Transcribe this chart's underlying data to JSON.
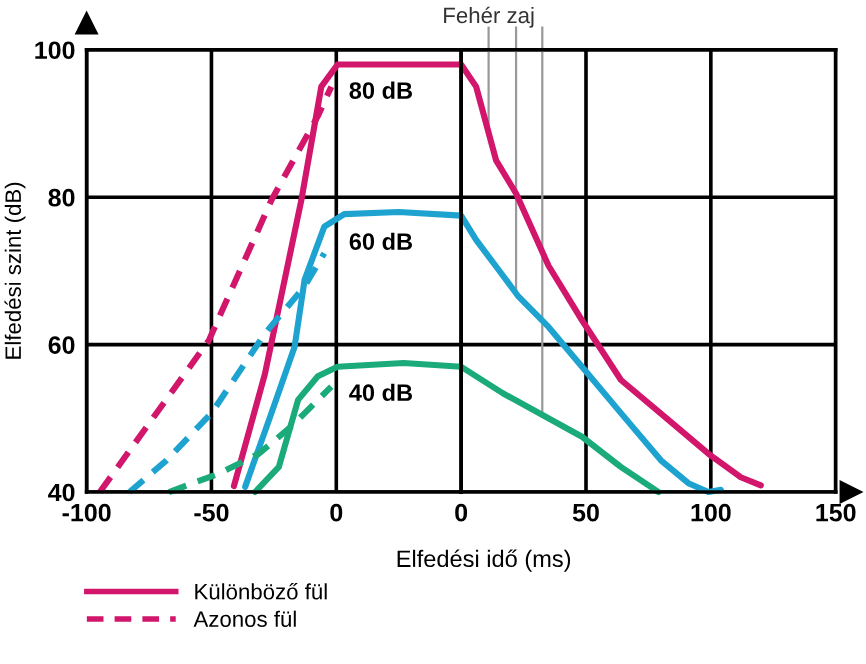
{
  "chart_data": [
    {
      "type": "line",
      "ylabel": "Elfedési szint (dB)",
      "xlim": [
        -100,
        50
      ],
      "ylim": [
        40,
        100
      ],
      "xticks": [
        -100,
        -50,
        0
      ],
      "yticks": [
        40,
        60,
        80,
        100
      ],
      "grid": true,
      "legend": "bottom left",
      "line_style": "solid",
      "series": [
        {
          "name": "Különböző fül",
          "color": "#d1166b",
          "x": [
            -41,
            -28.6,
            -14,
            -6,
            0.5,
            48,
            50
          ],
          "values": [
            40.8,
            56,
            79.6,
            95,
            98,
            98,
            98
          ]
        },
        {
          "color": "#1ea3d0",
          "x": [
            -36.5,
            -26,
            -16.7,
            -12.7,
            -4.8,
            3.2,
            25,
            50
          ],
          "values": [
            40.7,
            50.7,
            59.7,
            68.8,
            76,
            77.7,
            78,
            77.5
          ]
        },
        {
          "color": "#1bab7a",
          "x": [
            -32.5,
            -23,
            -15.3,
            -7.4,
            0.5,
            27,
            50
          ],
          "values": [
            40,
            43.4,
            52.5,
            55.7,
            57,
            57.5,
            57
          ]
        },
        {
          "name": "Azonos fül",
          "color": "#d1166b",
          "line_style": "dashed",
          "x": [
            -94.7,
            -51,
            -26,
            -7.4,
            -2
          ],
          "values": [
            40,
            60.6,
            79.6,
            91,
            95
          ]
        },
        {
          "color": "#1ea3d0",
          "line_style": "dashed",
          "x": [
            -82.8,
            -68,
            -50,
            -28.6,
            -12.7,
            -4.8
          ],
          "values": [
            40,
            44.3,
            50.7,
            61.5,
            67.9,
            72.4
          ]
        },
        {
          "color": "#1bab7a",
          "line_style": "dashed",
          "x": [
            -67,
            -47,
            -31,
            -18,
            -7.4,
            -2
          ],
          "values": [
            40,
            42.5,
            45.2,
            48.9,
            52.5,
            54.3
          ]
        }
      ],
      "annotations": [
        "80 dB",
        "60 dB",
        "40 dB"
      ]
    },
    {
      "type": "line",
      "xlabel": "Elfedési idő (ms)",
      "xlim": [
        0,
        150
      ],
      "ylim": [
        40,
        100
      ],
      "xticks": [
        0,
        50,
        100,
        150
      ],
      "yticks": [
        40,
        60,
        80,
        100
      ],
      "grid": true,
      "tick_labels": "x",
      "line_style": "solid",
      "series": [
        {
          "color": "#d1166b",
          "x": [
            0,
            6,
            14,
            22,
            35,
            48.4,
            64,
            83,
            99,
            112,
            120
          ],
          "values": [
            98,
            95,
            85,
            80.5,
            70.7,
            63.3,
            55.2,
            49.8,
            45.2,
            42,
            40.9
          ]
        },
        {
          "color": "#1ea3d0",
          "x": [
            0,
            6,
            14,
            23,
            35,
            48.4,
            64,
            80,
            91,
            99,
            104
          ],
          "values": [
            77.5,
            74.2,
            70.6,
            66.5,
            62.4,
            57,
            50.7,
            44.3,
            41.2,
            40,
            40.3
          ]
        },
        {
          "color": "#1bab7a",
          "x": [
            0,
            16.7,
            48.4,
            64,
            79
          ],
          "values": [
            57,
            53.4,
            47.5,
            43.4,
            40
          ]
        }
      ],
      "ref_lines": [
        {
          "axis": "x",
          "value": 11,
          "label": "Fehér zaj",
          "color": "#999999"
        },
        {
          "axis": "x",
          "value": 22,
          "label": null,
          "color": "#999999"
        },
        {
          "axis": "x",
          "value": 32.5,
          "label": null,
          "color": "#999999"
        }
      ]
    }
  ]
}
